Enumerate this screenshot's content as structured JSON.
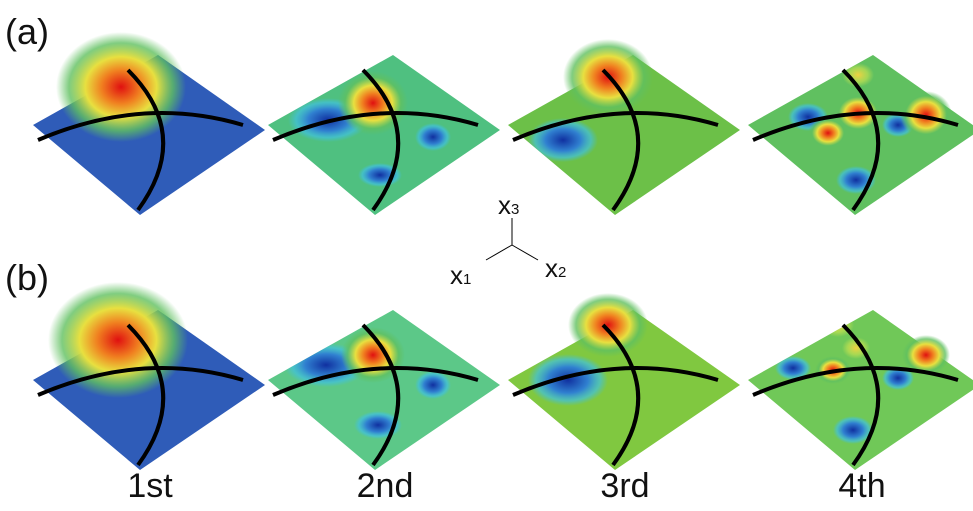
{
  "panels": {
    "a": "(a)",
    "b": "(b)"
  },
  "modes": [
    "1st",
    "2nd",
    "3rd",
    "4th"
  ],
  "axes": [
    {
      "letter": "x",
      "index": "3"
    },
    {
      "letter": "x",
      "index": "1"
    },
    {
      "letter": "x",
      "index": "2"
    }
  ]
}
